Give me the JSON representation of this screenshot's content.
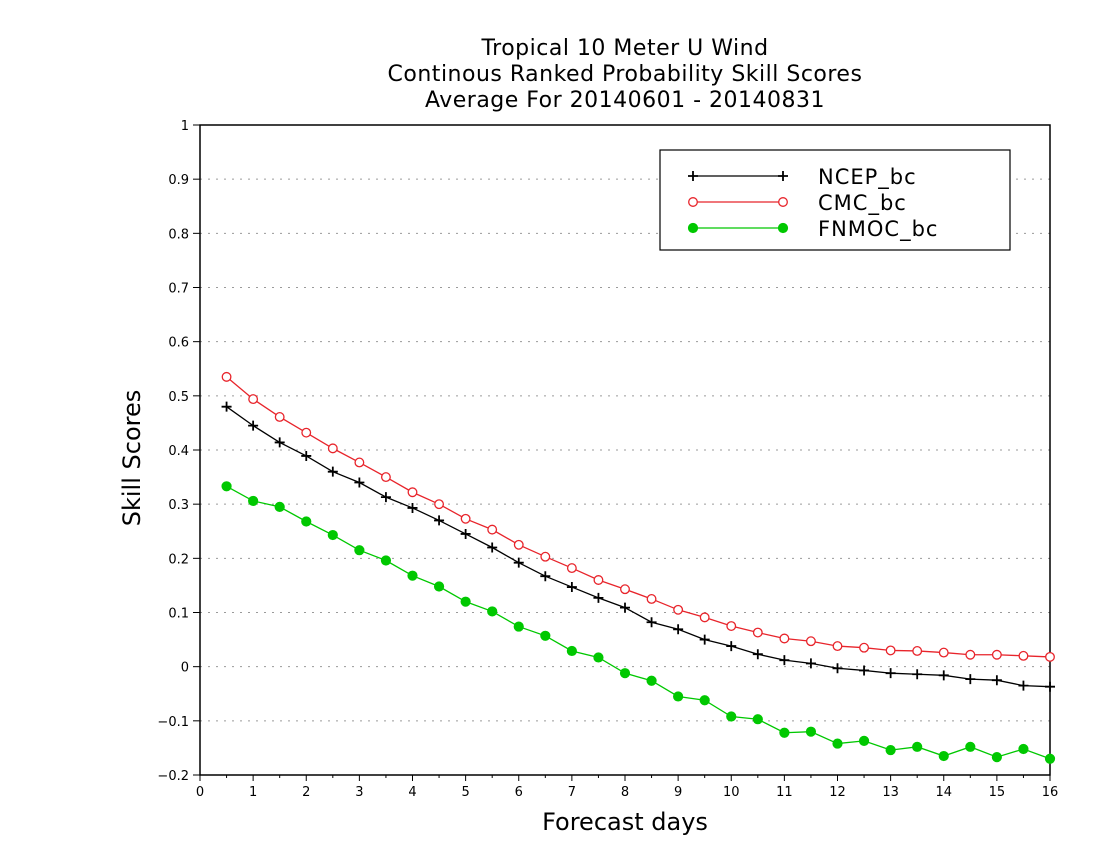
{
  "chart_data": {
    "type": "line",
    "title": "Tropical 10 Meter U Wind",
    "subtitle_lines": [
      "Continous Ranked Probability Skill Scores",
      "Average For 20140601 - 20140831"
    ],
    "xlabel": "Forecast days",
    "ylabel": "Skill Scores",
    "xlim": [
      0,
      16
    ],
    "ylim": [
      -0.2,
      1
    ],
    "xticks": [
      "0",
      "1",
      "2",
      "3",
      "4",
      "5",
      "6",
      "7",
      "8",
      "9",
      "10",
      "11",
      "12",
      "13",
      "14",
      "15",
      "16"
    ],
    "yticks": [
      "−0.2",
      "−0.1",
      "0",
      "0.1",
      "0.2",
      "0.3",
      "0.4",
      "0.5",
      "0.6",
      "0.7",
      "0.8",
      "0.9",
      "1"
    ],
    "grid": "horizontal dotted",
    "legend_position": "top-right",
    "x": [
      0.5,
      1,
      1.5,
      2,
      2.5,
      3,
      3.5,
      4,
      4.5,
      5,
      5.5,
      6,
      6.5,
      7,
      7.5,
      8,
      8.5,
      9,
      9.5,
      10,
      10.5,
      11,
      11.5,
      12,
      12.5,
      13,
      13.5,
      14,
      14.5,
      15,
      15.5,
      16
    ],
    "series": [
      {
        "name": "NCEP_bc",
        "color": "#000000",
        "marker": "plus",
        "values": [
          0.48,
          0.445,
          0.414,
          0.389,
          0.36,
          0.34,
          0.313,
          0.293,
          0.27,
          0.245,
          0.22,
          0.192,
          0.167,
          0.147,
          0.127,
          0.109,
          0.082,
          0.069,
          0.05,
          0.038,
          0.023,
          0.012,
          0.006,
          -0.003,
          -0.007,
          -0.012,
          -0.014,
          -0.016,
          -0.023,
          -0.025,
          -0.035,
          -0.037
        ]
      },
      {
        "name": "CMC_bc",
        "color": "#e8242b",
        "marker": "open-circle",
        "values": [
          0.535,
          0.494,
          0.461,
          0.432,
          0.403,
          0.377,
          0.35,
          0.322,
          0.3,
          0.273,
          0.253,
          0.225,
          0.203,
          0.182,
          0.16,
          0.143,
          0.125,
          0.105,
          0.091,
          0.075,
          0.063,
          0.052,
          0.047,
          0.038,
          0.035,
          0.03,
          0.029,
          0.026,
          0.022,
          0.022,
          0.02,
          0.018
        ]
      },
      {
        "name": "FNMOC_bc",
        "color": "#00c800",
        "marker": "filled-circle",
        "values": [
          0.333,
          0.306,
          0.295,
          0.268,
          0.243,
          0.215,
          0.196,
          0.168,
          0.148,
          0.12,
          0.102,
          0.074,
          0.057,
          0.029,
          0.017,
          -0.012,
          -0.026,
          -0.055,
          -0.062,
          -0.092,
          -0.097,
          -0.122,
          -0.12,
          -0.142,
          -0.137,
          -0.154,
          -0.148,
          -0.165,
          -0.148,
          -0.167,
          -0.152,
          -0.17
        ]
      }
    ]
  }
}
